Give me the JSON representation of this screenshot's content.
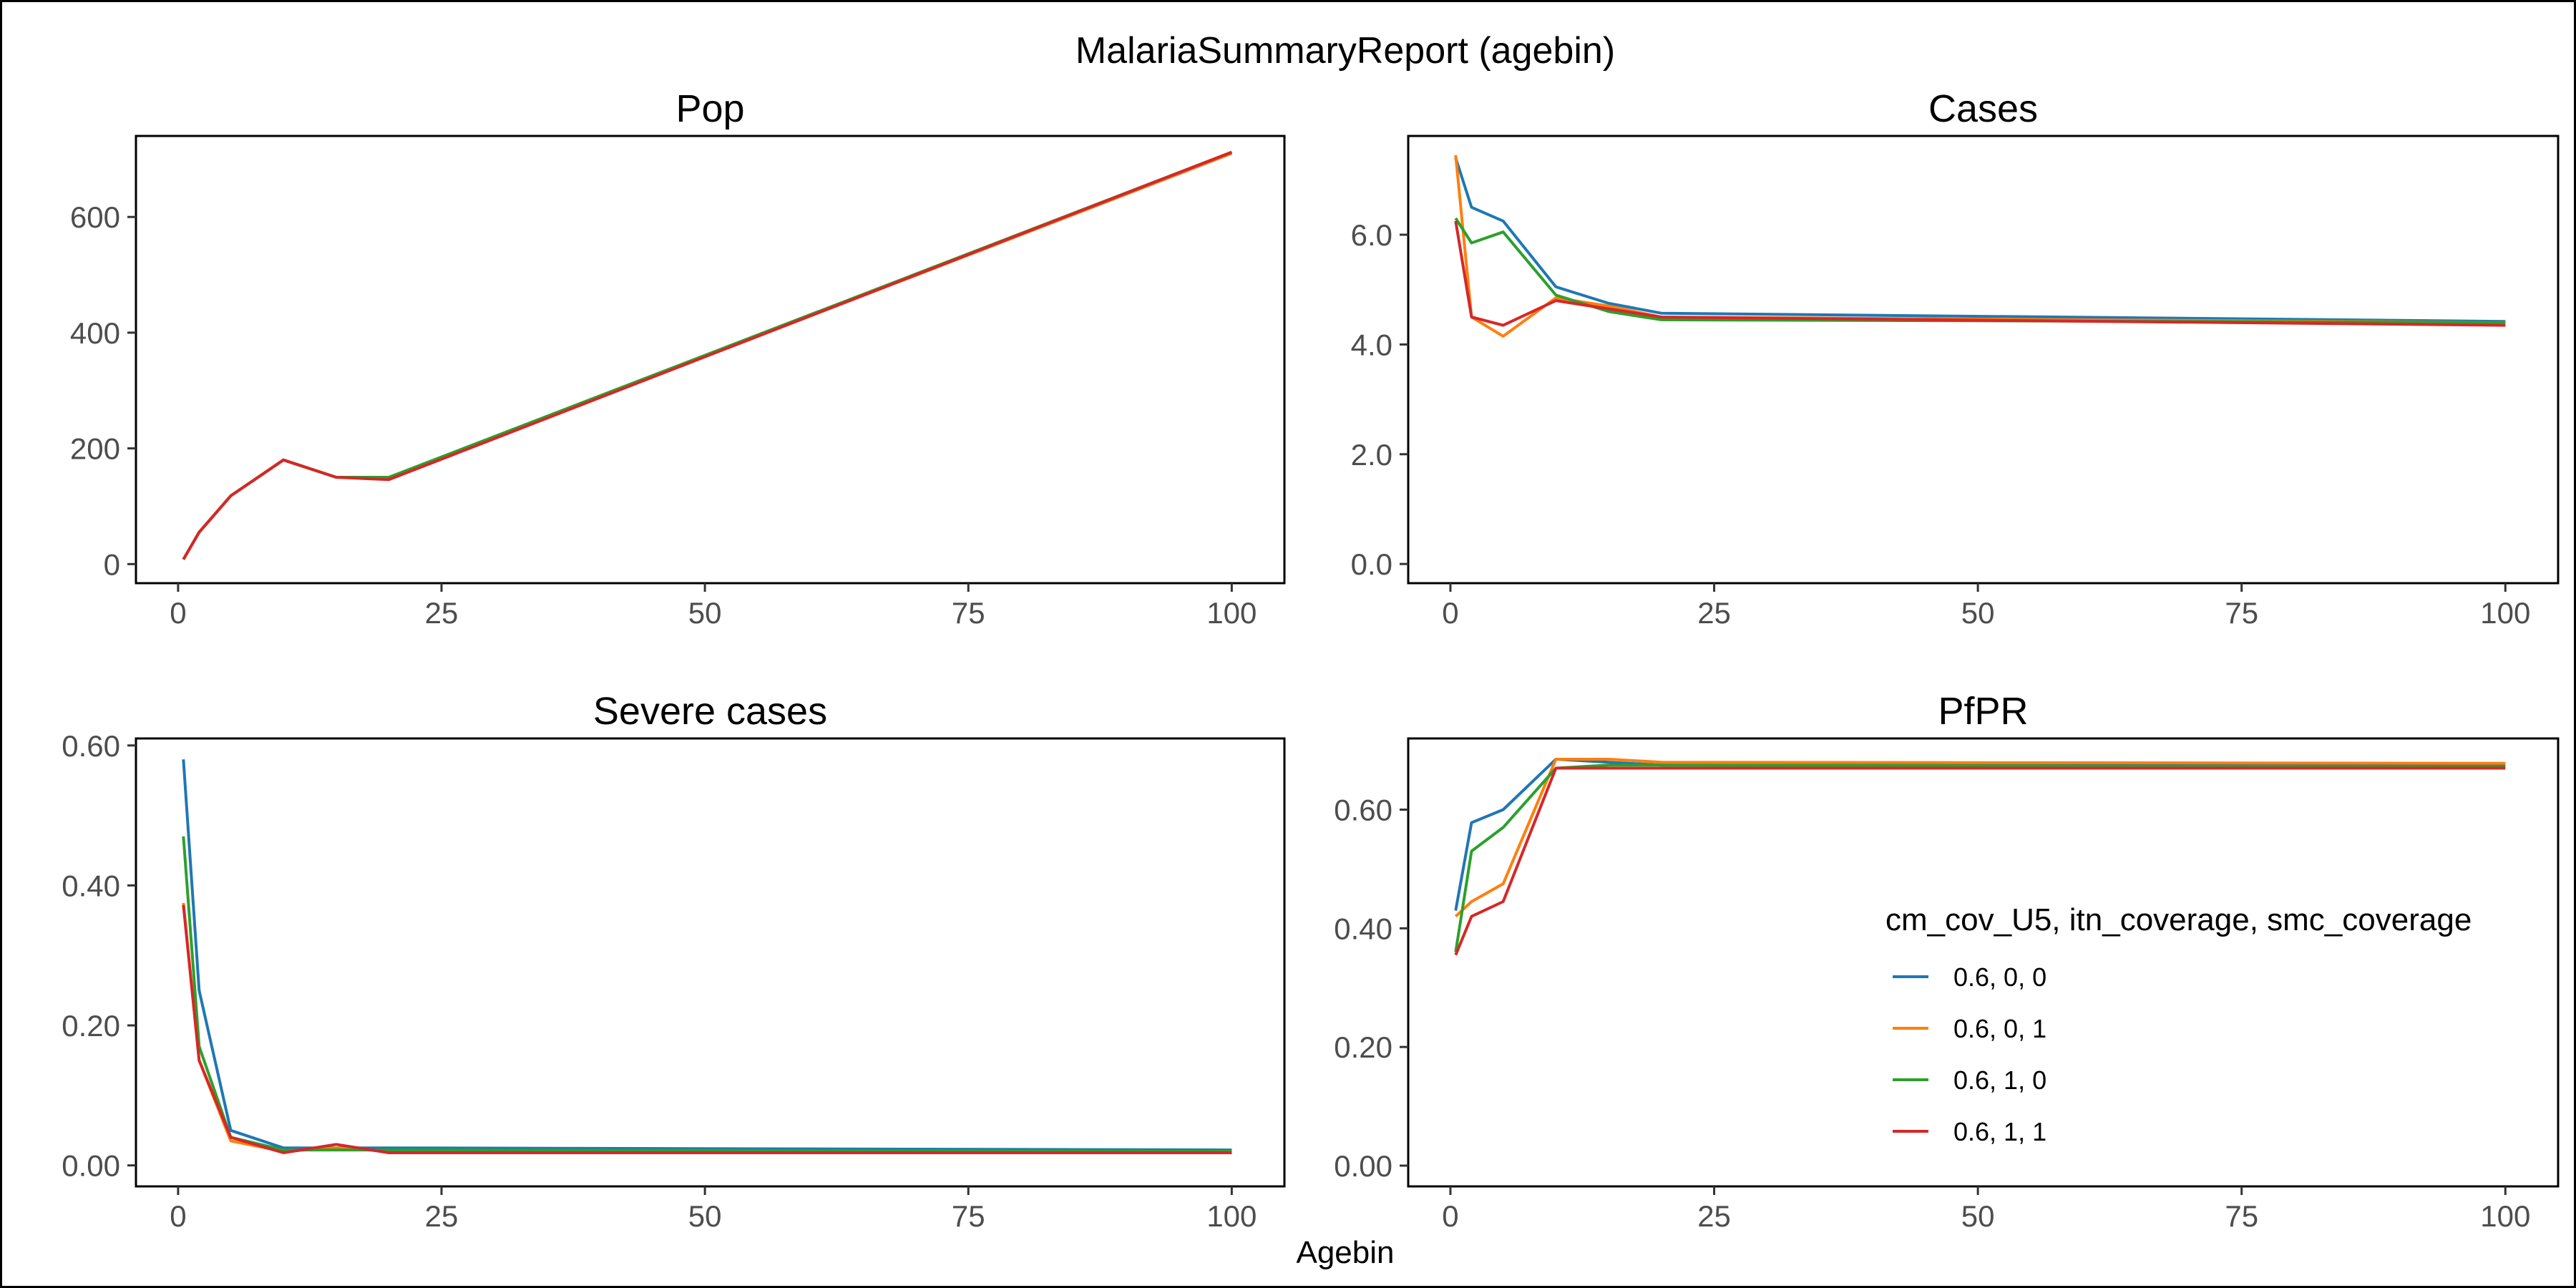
{
  "figure": {
    "title": "MalariaSummaryReport (agebin)",
    "xlabel": "Agebin"
  },
  "legend": {
    "title": "cm_cov_U5, itn_coverage, smc_coverage",
    "placement": "inside-right of PfPR panel"
  },
  "chart_data": [
    {
      "type": "line",
      "title": "Pop",
      "xlim": [
        -4,
        105
      ],
      "ylim": [
        -33,
        740
      ],
      "xticks": [
        0,
        25,
        50,
        75,
        100
      ],
      "yticks": [
        0,
        200,
        400,
        600
      ],
      "yformat": "int",
      "x": [
        0.5,
        2,
        5,
        10,
        15,
        20,
        100
      ],
      "series": [
        {
          "name": "0.6, 0, 0",
          "color": "#1f77b4",
          "values": [
            8,
            55,
            118,
            180,
            150,
            148,
            710
          ]
        },
        {
          "name": "0.6, 0, 1",
          "color": "#ff7f0e",
          "values": [
            8,
            55,
            118,
            180,
            150,
            148,
            710
          ]
        },
        {
          "name": "0.6, 1, 0",
          "color": "#2ca02c",
          "values": [
            8,
            55,
            118,
            180,
            150,
            150,
            712
          ]
        },
        {
          "name": "0.6, 1, 1",
          "color": "#d62728",
          "values": [
            8,
            55,
            118,
            180,
            150,
            146,
            712
          ]
        }
      ]
    },
    {
      "type": "line",
      "title": "Cases",
      "xlim": [
        -4,
        105
      ],
      "ylim": [
        -0.35,
        7.8
      ],
      "xticks": [
        0,
        25,
        50,
        75,
        100
      ],
      "yticks": [
        0,
        2,
        4,
        6
      ],
      "yformat": "1",
      "x": [
        0.5,
        2,
        5,
        10,
        15,
        20,
        100
      ],
      "series": [
        {
          "name": "0.6, 0, 0",
          "color": "#1f77b4",
          "values": [
            7.4,
            6.5,
            6.25,
            5.05,
            4.75,
            4.57,
            4.42
          ]
        },
        {
          "name": "0.6, 0, 1",
          "color": "#ff7f0e",
          "values": [
            7.45,
            4.5,
            4.15,
            4.85,
            4.7,
            4.5,
            4.4
          ]
        },
        {
          "name": "0.6, 1, 0",
          "color": "#2ca02c",
          "values": [
            6.3,
            5.85,
            6.05,
            4.9,
            4.6,
            4.45,
            4.4
          ]
        },
        {
          "name": "0.6, 1, 1",
          "color": "#d62728",
          "values": [
            6.25,
            4.5,
            4.35,
            4.8,
            4.65,
            4.5,
            4.35
          ]
        }
      ]
    },
    {
      "type": "line",
      "title": "Severe cases",
      "xlim": [
        -4,
        105
      ],
      "ylim": [
        -0.03,
        0.61
      ],
      "xticks": [
        0,
        25,
        50,
        75,
        100
      ],
      "yticks": [
        0,
        0.2,
        0.4,
        0.6
      ],
      "yformat": "2",
      "x": [
        0.5,
        2,
        5,
        10,
        15,
        20,
        100
      ],
      "series": [
        {
          "name": "0.6, 0, 0",
          "color": "#1f77b4",
          "values": [
            0.58,
            0.25,
            0.05,
            0.025,
            0.025,
            0.025,
            0.022
          ]
        },
        {
          "name": "0.6, 0, 1",
          "color": "#ff7f0e",
          "values": [
            0.375,
            0.15,
            0.035,
            0.02,
            0.025,
            0.02,
            0.02
          ]
        },
        {
          "name": "0.6, 1, 0",
          "color": "#2ca02c",
          "values": [
            0.47,
            0.17,
            0.04,
            0.022,
            0.022,
            0.022,
            0.02
          ]
        },
        {
          "name": "0.6, 1, 1",
          "color": "#d62728",
          "values": [
            0.372,
            0.15,
            0.04,
            0.018,
            0.03,
            0.018,
            0.018
          ]
        }
      ]
    },
    {
      "type": "line",
      "title": "PfPR",
      "xlim": [
        -4,
        105
      ],
      "ylim": [
        -0.035,
        0.72
      ],
      "xticks": [
        0,
        25,
        50,
        75,
        100
      ],
      "yticks": [
        0,
        0.2,
        0.4,
        0.6
      ],
      "yformat": "2",
      "x": [
        0.5,
        2,
        5,
        10,
        15,
        20,
        100
      ],
      "series": [
        {
          "name": "0.6, 0, 0",
          "color": "#1f77b4",
          "values": [
            0.43,
            0.578,
            0.6,
            0.685,
            0.68,
            0.675,
            0.675
          ]
        },
        {
          "name": "0.6, 0, 1",
          "color": "#ff7f0e",
          "values": [
            0.42,
            0.445,
            0.475,
            0.685,
            0.685,
            0.68,
            0.678
          ]
        },
        {
          "name": "0.6, 1, 0",
          "color": "#2ca02c",
          "values": [
            0.36,
            0.53,
            0.57,
            0.67,
            0.675,
            0.675,
            0.672
          ]
        },
        {
          "name": "0.6, 1, 1",
          "color": "#d62728",
          "values": [
            0.355,
            0.42,
            0.445,
            0.67,
            0.67,
            0.67,
            0.67
          ]
        }
      ]
    }
  ]
}
